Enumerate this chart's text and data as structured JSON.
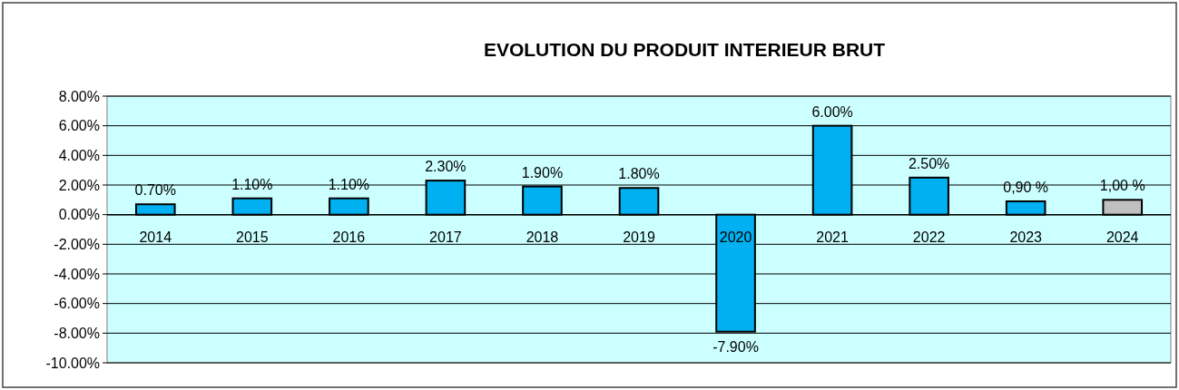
{
  "chart_data": {
    "type": "bar",
    "title": "EVOLUTION DU PRODUIT INTERIEUR BRUT",
    "categories": [
      "2014",
      "2015",
      "2016",
      "2017",
      "2018",
      "2019",
      "2020",
      "2021",
      "2022",
      "2023",
      "2024"
    ],
    "values": [
      0.7,
      1.1,
      1.1,
      2.3,
      1.9,
      1.8,
      -7.9,
      6.0,
      2.5,
      0.9,
      1.0
    ],
    "colors": [
      "#00b0f0",
      "#00b0f0",
      "#00b0f0",
      "#00b0f0",
      "#00b0f0",
      "#00b0f0",
      "#00b0f0",
      "#00b0f0",
      "#00b0f0",
      "#00b0f0",
      "#c0c0c0"
    ],
    "value_labels": [
      "0.70%",
      "1.10%",
      "1.10%",
      "2.30%",
      "1.90%",
      "1.80%",
      "-7.90%",
      "6.00%",
      "2.50%",
      "0,90 %",
      "1,00 %"
    ],
    "ylim": [
      -10,
      8
    ],
    "yticks": [
      {
        "value": 8,
        "label": "8.00%"
      },
      {
        "value": 6,
        "label": "6.00%"
      },
      {
        "value": 4,
        "label": "4.00%"
      },
      {
        "value": 2,
        "label": "2.00%"
      },
      {
        "value": 0,
        "label": "0.00%"
      },
      {
        "value": -2,
        "label": "-2.00%"
      },
      {
        "value": -4,
        "label": "-4.00%"
      },
      {
        "value": -6,
        "label": "-6.00%"
      },
      {
        "value": -8,
        "label": "-8.00%"
      },
      {
        "value": -10,
        "label": "-10.00%"
      }
    ],
    "grid": "y"
  }
}
